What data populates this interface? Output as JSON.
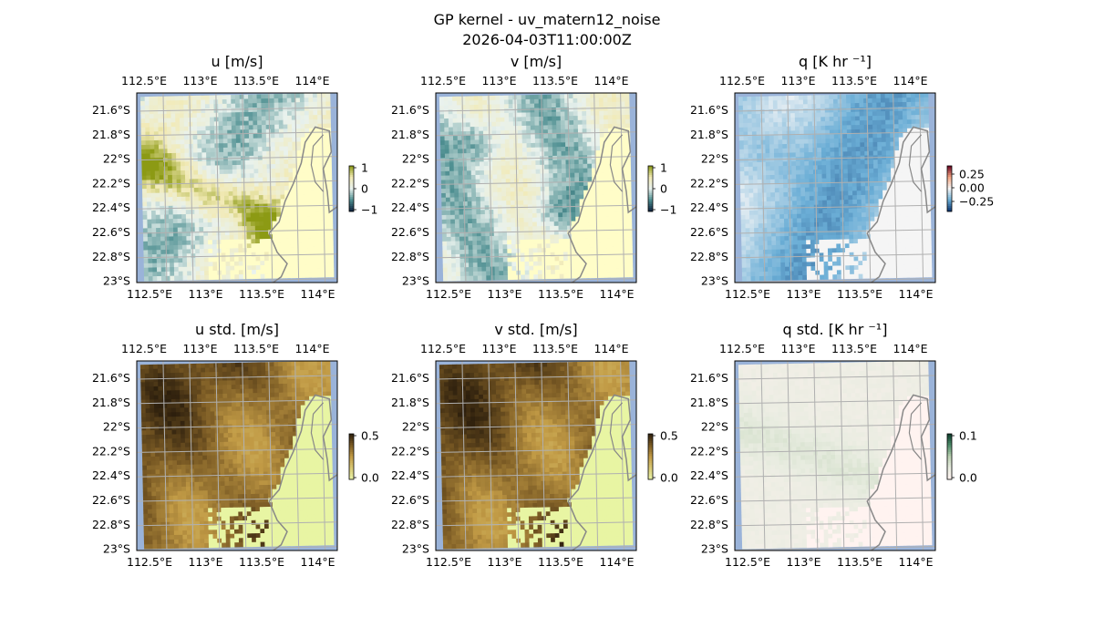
{
  "figure": {
    "title_line1": "GP kernel - uv_matern12_noise",
    "title_line2": "2026-04-03T11:00:00Z"
  },
  "chart_data": [
    {
      "type": "heatmap",
      "title": "u [m/s]",
      "lon_ticks": [
        "112.5°E",
        "113°E",
        "113.5°E",
        "114°E"
      ],
      "lat_ticks": [
        "21.6°S",
        "21.8°S",
        "22°S",
        "22.2°S",
        "22.4°S",
        "22.6°S",
        "22.8°S",
        "23°S"
      ],
      "colorbar": {
        "ticks": [
          "1",
          "0",
          "−1"
        ],
        "range": [
          -1,
          1
        ]
      },
      "colormap": [
        "#0d1f3d",
        "#4e8f91",
        "#e9f2ee",
        "#f2eab5",
        "#8c9a14"
      ],
      "grid": true
    },
    {
      "type": "heatmap",
      "title": "v [m/s]",
      "lon_ticks": [
        "112.5°E",
        "113°E",
        "113.5°E",
        "114°E"
      ],
      "lat_ticks": [
        "21.6°S",
        "21.8°S",
        "22°S",
        "22.2°S",
        "22.4°S",
        "22.6°S",
        "22.8°S",
        "23°S"
      ],
      "colorbar": {
        "ticks": [
          "1",
          "0",
          "−1"
        ],
        "range": [
          -1,
          1
        ]
      },
      "colormap": [
        "#0d1f3d",
        "#4e8f91",
        "#e9f2ee",
        "#f2eab5",
        "#8c9a14"
      ],
      "grid": true
    },
    {
      "type": "heatmap",
      "title": "q [K hr ⁻¹]",
      "lon_ticks": [
        "112.5°E",
        "113°E",
        "113.5°E",
        "114°E"
      ],
      "lat_ticks": [
        "21.6°S",
        "21.8°S",
        "22°S",
        "22.2°S",
        "22.4°S",
        "22.6°S",
        "22.8°S",
        "23°S"
      ],
      "colorbar": {
        "ticks": [
          "0.25",
          "0.00",
          "−0.25"
        ],
        "range": [
          -0.35,
          0.35
        ]
      },
      "colormap": [
        "#08306b",
        "#6baed6",
        "#f7f7f7",
        "#f4a582",
        "#67001f"
      ],
      "grid": true
    },
    {
      "type": "heatmap",
      "title": "u std. [m/s]",
      "lon_ticks": [
        "112.5°E",
        "113°E",
        "113.5°E",
        "114°E"
      ],
      "lat_ticks": [
        "21.6°S",
        "21.8°S",
        "22°S",
        "22.2°S",
        "22.4°S",
        "22.6°S",
        "22.8°S",
        "23°S"
      ],
      "colorbar": {
        "ticks": [
          "0.5",
          "0.0"
        ],
        "range": [
          0,
          0.5
        ]
      },
      "colormap": [
        "#e9f5a9",
        "#d9c874",
        "#c19a45",
        "#7a5a24",
        "#2d1f0d"
      ],
      "grid": true
    },
    {
      "type": "heatmap",
      "title": "v std. [m/s]",
      "lon_ticks": [
        "112.5°E",
        "113°E",
        "113.5°E",
        "114°E"
      ],
      "lat_ticks": [
        "21.6°S",
        "21.8°S",
        "22°S",
        "22.2°S",
        "22.4°S",
        "22.6°S",
        "22.8°S",
        "23°S"
      ],
      "colorbar": {
        "ticks": [
          "0.5",
          "0.0"
        ],
        "range": [
          0,
          0.5
        ]
      },
      "colormap": [
        "#e9f5a9",
        "#d9c874",
        "#c19a45",
        "#7a5a24",
        "#2d1f0d"
      ],
      "grid": true
    },
    {
      "type": "heatmap",
      "title": "q std. [K hr ⁻¹]",
      "lon_ticks": [
        "112.5°E",
        "113°E",
        "113.5°E",
        "114°E"
      ],
      "lat_ticks": [
        "21.6°S",
        "21.8°S",
        "22°S",
        "22.2°S",
        "22.4°S",
        "22.6°S",
        "22.8°S",
        "23°S"
      ],
      "colorbar": {
        "ticks": [
          "0.1",
          "0.0"
        ],
        "range": [
          0,
          0.1
        ]
      },
      "colormap": [
        "#fff2f0",
        "#e8ece0",
        "#b9d0b0",
        "#4d8c6a",
        "#0b3a2a"
      ],
      "grid": true
    }
  ],
  "colors": {
    "ocean": "#9ab3d9",
    "coastline": "#888888",
    "gridline": "#b0b0b0"
  }
}
